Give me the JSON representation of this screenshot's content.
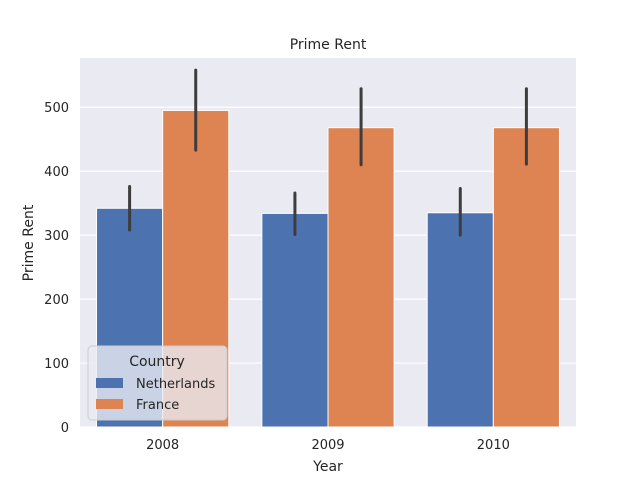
{
  "chart_data": {
    "type": "bar",
    "title": "Prime Rent",
    "xlabel": "Year",
    "ylabel": "Prime Rent",
    "categories": [
      "2008",
      "2009",
      "2010"
    ],
    "yticks": [
      0,
      100,
      200,
      300,
      400,
      500
    ],
    "ylim": [
      0,
      577
    ],
    "grid": true,
    "legend": {
      "title": "Country",
      "placement": "lower-left"
    },
    "series": [
      {
        "name": "Netherlands",
        "color": "#4c72b0",
        "values": [
          342,
          334,
          335
        ],
        "ci_low": [
          308,
          301,
          300
        ],
        "ci_high": [
          376,
          366,
          373
        ]
      },
      {
        "name": "France",
        "color": "#dd8452",
        "values": [
          495,
          468,
          468
        ],
        "ci_low": [
          433,
          410,
          411
        ],
        "ci_high": [
          558,
          529,
          529
        ]
      }
    ]
  }
}
